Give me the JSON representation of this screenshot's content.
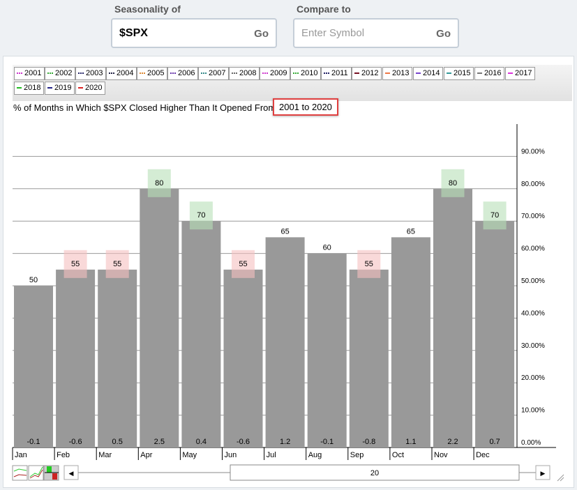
{
  "header": {
    "seasonality_label": "Seasonality of",
    "seasonality_value": "$SPX",
    "seasonality_go": "Go",
    "compare_label": "Compare to",
    "compare_placeholder": "Enter Symbol",
    "compare_go": "Go"
  },
  "legend": [
    {
      "year": "2001",
      "color": "#cc33cc",
      "style": "dotted"
    },
    {
      "year": "2002",
      "color": "#33aa33",
      "style": "dotted"
    },
    {
      "year": "2003",
      "color": "#222266",
      "style": "dotted"
    },
    {
      "year": "2004",
      "color": "#222244",
      "style": "dotted"
    },
    {
      "year": "2005",
      "color": "#dd8833",
      "style": "dotted"
    },
    {
      "year": "2006",
      "color": "#6633aa",
      "style": "dotted"
    },
    {
      "year": "2007",
      "color": "#338888",
      "style": "dotted"
    },
    {
      "year": "2008",
      "color": "#666666",
      "style": "dotted"
    },
    {
      "year": "2009",
      "color": "#cc33cc",
      "style": "dotted"
    },
    {
      "year": "2010",
      "color": "#33aa33",
      "style": "dotted"
    },
    {
      "year": "2011",
      "color": "#222266",
      "style": "dotted"
    },
    {
      "year": "2012",
      "color": "#771122",
      "style": "solid"
    },
    {
      "year": "2013",
      "color": "#ee7744",
      "style": "solid"
    },
    {
      "year": "2014",
      "color": "#7744cc",
      "style": "solid"
    },
    {
      "year": "2015",
      "color": "#339999",
      "style": "solid"
    },
    {
      "year": "2016",
      "color": "#777777",
      "style": "solid"
    },
    {
      "year": "2017",
      "color": "#dd33dd",
      "style": "solid"
    },
    {
      "year": "2018",
      "color": "#22bb22",
      "style": "solid"
    },
    {
      "year": "2019",
      "color": "#222288",
      "style": "solid"
    },
    {
      "year": "2020",
      "color": "#dd2222",
      "style": "solid"
    }
  ],
  "chart_title_prefix": "% of Months in Which $SPX Closed Higher Than It Opened From",
  "chart_title_range": "2001 to 2020",
  "chart_data": {
    "type": "bar",
    "categories": [
      "Jan",
      "Feb",
      "Mar",
      "Apr",
      "May",
      "Jun",
      "Jul",
      "Aug",
      "Sep",
      "Oct",
      "Nov",
      "Dec"
    ],
    "values": [
      50,
      55,
      55,
      80,
      70,
      55,
      65,
      60,
      55,
      65,
      80,
      70
    ],
    "avg_returns": [
      "-0.1",
      "-0.6",
      "0.5",
      "2.5",
      "0.4",
      "-0.6",
      "1.2",
      "-0.1",
      "-0.8",
      "1.1",
      "2.2",
      "0.7"
    ],
    "highlight": [
      "none",
      "red",
      "red",
      "green",
      "green",
      "red",
      "none",
      "none",
      "red",
      "none",
      "green",
      "green"
    ],
    "yticks": [
      "0.00%",
      "10.00%",
      "20.00%",
      "30.00%",
      "40.00%",
      "50.00%",
      "60.00%",
      "70.00%",
      "80.00%",
      "90.00%"
    ],
    "ylim": [
      0,
      100
    ],
    "grid": true,
    "bar_color": "#999999",
    "colors": {
      "green": "#b8e0b8",
      "red": "#f5c0c0"
    }
  },
  "slider": {
    "value": "20"
  }
}
